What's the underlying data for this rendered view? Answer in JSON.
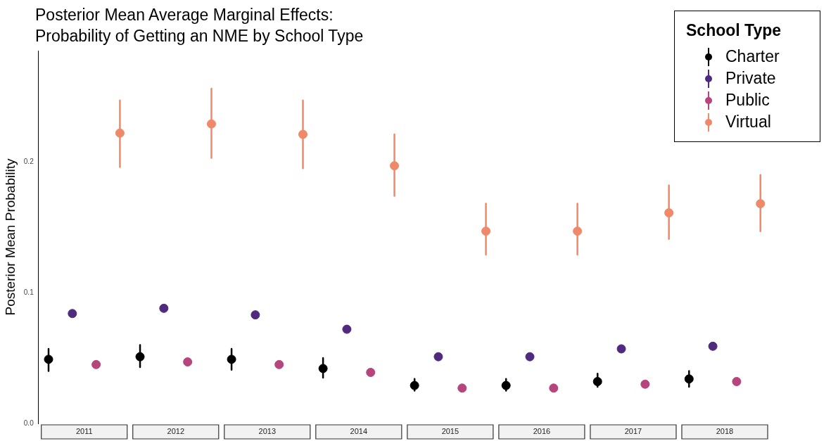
{
  "chart_data": {
    "type": "scatter",
    "title": "Posterior Mean Average Marginal Effects: Probability of Getting an NME by School Type",
    "ylabel": "Posterior Mean Probability",
    "legend_title": "School Type",
    "legend": "top right",
    "grid": false,
    "marker": "circle",
    "categories": [
      "2011",
      "2012",
      "2013",
      "2014",
      "2015",
      "2016",
      "2017",
      "2018"
    ],
    "ylim": [
      0,
      0.285
    ],
    "yticks": [
      {
        "value": 0,
        "label": "0.0"
      },
      0.1,
      0.2
    ],
    "series": [
      {
        "name": "Charter",
        "color": "#000000",
        "values": [
          0.049,
          0.051,
          0.049,
          0.042,
          0.029,
          0.029,
          0.032,
          0.034
        ],
        "errors": [
          [
            0.04,
            0.057
          ],
          [
            0.043,
            0.06
          ],
          [
            0.041,
            0.057
          ],
          [
            0.035,
            0.05
          ],
          [
            0.025,
            0.034
          ],
          [
            0.025,
            0.034
          ],
          [
            0.028,
            0.038
          ],
          [
            0.028,
            0.04
          ]
        ]
      },
      {
        "name": "Private",
        "color": "#4f2a7f",
        "values": [
          0.084,
          0.088,
          0.083,
          0.072,
          0.051,
          0.051,
          0.057,
          0.059
        ]
      },
      {
        "name": "Public",
        "color": "#b5457a",
        "values": [
          0.045,
          0.047,
          0.045,
          0.039,
          0.027,
          0.027,
          0.03,
          0.032
        ]
      },
      {
        "name": "Virtual",
        "color": "#f0886a",
        "values": [
          0.222,
          0.229,
          0.221,
          0.197,
          0.147,
          0.147,
          0.161,
          0.168
        ],
        "errors": [
          [
            0.196,
            0.247
          ],
          [
            0.203,
            0.256
          ],
          [
            0.195,
            0.247
          ],
          [
            0.174,
            0.221
          ],
          [
            0.129,
            0.168
          ],
          [
            0.129,
            0.168
          ],
          [
            0.141,
            0.182
          ],
          [
            0.147,
            0.19
          ]
        ]
      }
    ]
  }
}
